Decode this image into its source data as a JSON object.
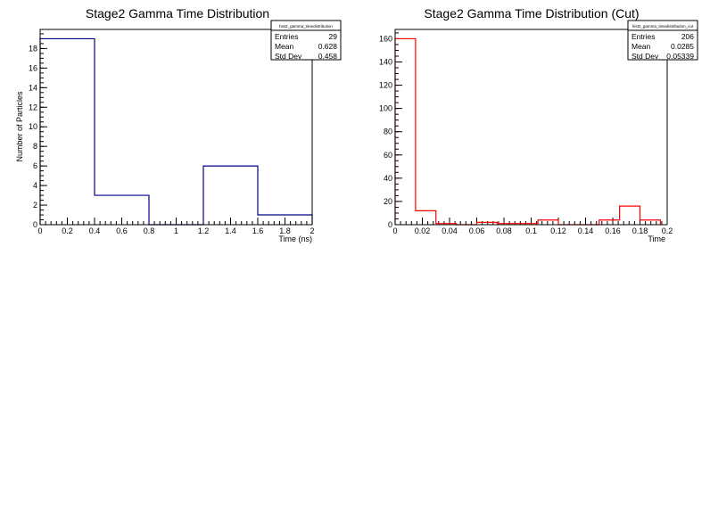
{
  "chart_data": [
    {
      "type": "bar",
      "title": "Stage2 Gamma Time Distribution",
      "xlabel": "Time (ns)",
      "ylabel": "Number of Particles",
      "xlim": [
        0,
        2
      ],
      "ylim": [
        0,
        19.95
      ],
      "x_ticks": [
        "0",
        "0.2",
        "0.4",
        "0.6",
        "0.8",
        "1",
        "1.2",
        "1.4",
        "1.6",
        "1.8",
        "2"
      ],
      "y_ticks": [
        "0",
        "2",
        "4",
        "6",
        "8",
        "10",
        "12",
        "14",
        "16",
        "18"
      ],
      "bin_edges": [
        0,
        0.4,
        0.8,
        1.2,
        1.6,
        2.0
      ],
      "values": [
        19,
        3,
        0,
        6,
        1
      ],
      "line_color": "#00008b",
      "stats_box": {
        "name": "hist2_gamma_timedistribution",
        "rows": [
          {
            "label": "Entries",
            "value": "29"
          },
          {
            "label": "Mean",
            "value": "0.628"
          },
          {
            "label": "Std Dev",
            "value": "0.458"
          }
        ]
      }
    },
    {
      "type": "bar",
      "title": "Stage2 Gamma Time Distribution (Cut)",
      "xlabel": "Time",
      "ylabel": "",
      "xlim": [
        0,
        0.2
      ],
      "ylim": [
        0,
        168
      ],
      "x_ticks": [
        "0",
        "0.02",
        "0.04",
        "0.06",
        "0.08",
        "0.1",
        "0.12",
        "0.14",
        "0.16",
        "0.18",
        "0.2"
      ],
      "y_ticks": [
        "0",
        "20",
        "40",
        "60",
        "80",
        "100",
        "120",
        "140",
        "160"
      ],
      "bin_edges": [
        0,
        0.015,
        0.03,
        0.045,
        0.06,
        0.075,
        0.09,
        0.105,
        0.12,
        0.135,
        0.15,
        0.165,
        0.18,
        0.195
      ],
      "values": [
        160,
        12,
        1,
        0,
        2,
        1,
        1,
        4,
        0,
        0,
        4,
        16,
        4
      ],
      "line_color": "#ff0000",
      "stats_box": {
        "name": "hist2_gamma_timedistribution_cut",
        "rows": [
          {
            "label": "Entries",
            "value": "206"
          },
          {
            "label": "Mean",
            "value": "0.0285"
          },
          {
            "label": "Std Dev",
            "value": "0.05339"
          }
        ]
      }
    }
  ]
}
